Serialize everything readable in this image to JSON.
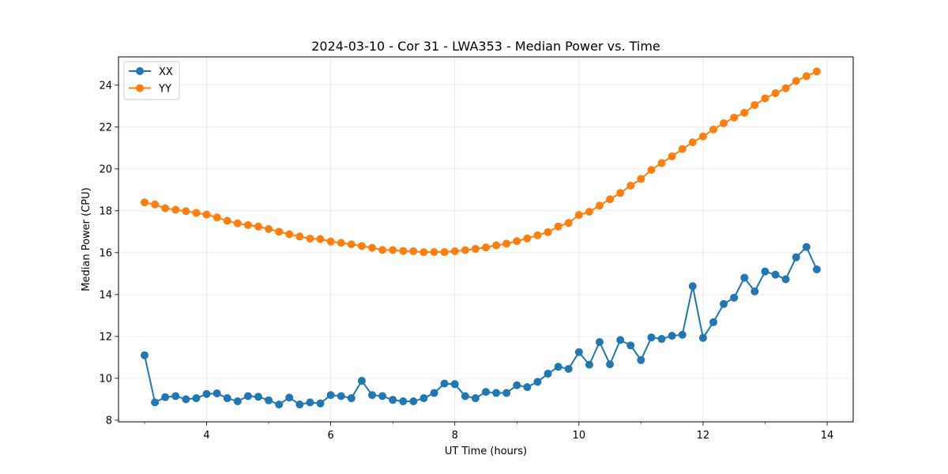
{
  "chart_data": {
    "type": "line",
    "title": "2024-03-10 - Cor 31 - LWA353 - Median Power vs. Time",
    "xlabel": "UT Time (hours)",
    "ylabel": "Median Power (CPU)",
    "xlim": [
      2.58,
      14.42
    ],
    "ylim": [
      7.92,
      25.35
    ],
    "xticks": [
      4,
      6,
      8,
      10,
      12,
      14
    ],
    "yticks": [
      8,
      10,
      12,
      14,
      16,
      18,
      20,
      22,
      24
    ],
    "grid": true,
    "legend_position": "upper-left",
    "x": [
      3.0,
      3.167,
      3.333,
      3.5,
      3.667,
      3.833,
      4.0,
      4.167,
      4.333,
      4.5,
      4.667,
      4.833,
      5.0,
      5.167,
      5.333,
      5.5,
      5.667,
      5.833,
      6.0,
      6.167,
      6.333,
      6.5,
      6.667,
      6.833,
      7.0,
      7.167,
      7.333,
      7.5,
      7.667,
      7.833,
      8.0,
      8.167,
      8.333,
      8.5,
      8.667,
      8.833,
      9.0,
      9.167,
      9.333,
      9.5,
      9.667,
      9.833,
      10.0,
      10.167,
      10.333,
      10.5,
      10.667,
      10.833,
      11.0,
      11.167,
      11.333,
      11.5,
      11.667,
      11.833,
      12.0,
      12.167,
      12.333,
      12.5,
      12.667,
      12.833,
      13.0,
      13.167,
      13.333,
      13.5,
      13.667,
      13.833
    ],
    "series": [
      {
        "name": "XX",
        "color": "#1f77b4",
        "values": [
          11.1,
          8.85,
          9.1,
          9.15,
          9.0,
          9.05,
          9.25,
          9.28,
          9.05,
          8.9,
          9.15,
          9.12,
          8.95,
          8.75,
          9.08,
          8.75,
          8.85,
          8.8,
          9.2,
          9.15,
          9.05,
          9.88,
          9.2,
          9.15,
          8.97,
          8.9,
          8.9,
          9.05,
          9.3,
          9.75,
          9.72,
          9.15,
          9.05,
          9.35,
          9.3,
          9.3,
          9.67,
          9.58,
          9.83,
          10.22,
          10.55,
          10.45,
          11.25,
          10.65,
          11.73,
          10.67,
          11.83,
          11.57,
          10.87,
          11.95,
          11.88,
          12.03,
          12.08,
          14.4,
          11.93,
          12.68,
          13.55,
          13.85,
          14.8,
          14.15,
          15.1,
          14.95,
          14.73,
          15.78,
          16.27,
          15.2
        ]
      },
      {
        "name": "YY",
        "color": "#ff7f0e",
        "values": [
          18.4,
          18.3,
          18.12,
          18.05,
          17.98,
          17.9,
          17.82,
          17.68,
          17.52,
          17.4,
          17.32,
          17.25,
          17.13,
          17.0,
          16.88,
          16.77,
          16.67,
          16.65,
          16.53,
          16.47,
          16.4,
          16.32,
          16.23,
          16.13,
          16.12,
          16.08,
          16.07,
          16.02,
          16.03,
          16.03,
          16.07,
          16.12,
          16.18,
          16.25,
          16.35,
          16.43,
          16.55,
          16.68,
          16.83,
          16.98,
          17.25,
          17.42,
          17.8,
          17.95,
          18.25,
          18.55,
          18.85,
          19.2,
          19.52,
          19.95,
          20.28,
          20.6,
          20.95,
          21.27,
          21.55,
          21.88,
          22.18,
          22.45,
          22.68,
          23.05,
          23.37,
          23.62,
          23.85,
          24.2,
          24.43,
          24.65
        ]
      }
    ]
  }
}
